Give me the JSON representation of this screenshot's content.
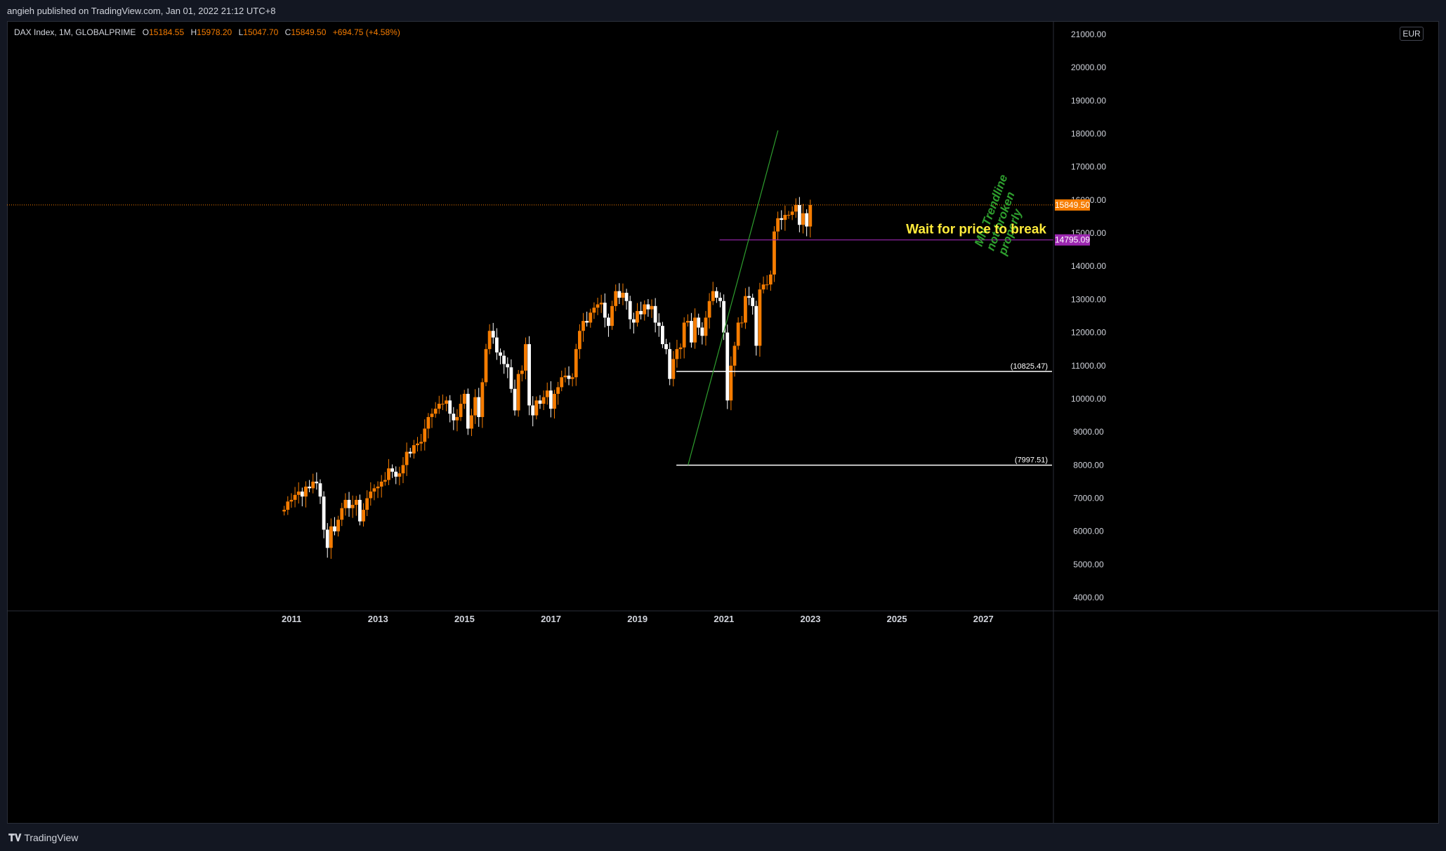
{
  "header": {
    "publish_line": "angieh published on TradingView.com, Jan 01, 2022 21:12 UTC+8"
  },
  "legend": {
    "symbol": "DAX Index, 1M, GLOBALPRIME",
    "o_label": "O",
    "o_value": "15184.55",
    "h_label": "H",
    "h_value": "15978.20",
    "l_label": "L",
    "l_value": "15047.70",
    "c_label": "C",
    "c_value": "15849.50",
    "change": "+694.75 (+4.58%)"
  },
  "currency": "EUR",
  "footer": {
    "brand": "TradingView"
  },
  "colors": {
    "up": "#f57c00",
    "down": "#ffffff",
    "trendline": "#2e9e2e",
    "support": "#9c27b0",
    "levels": "#ffffff",
    "annotation_yellow": "#ffeb3b",
    "price_tag": "#f57c00"
  },
  "chart_data": {
    "type": "candlestick",
    "title": "DAX Index, 1M, GLOBALPRIME",
    "ylim": [
      3600,
      21400
    ],
    "y_ticks": [
      4000,
      5000,
      6000,
      7000,
      8000,
      9000,
      10000,
      11000,
      12000,
      13000,
      14000,
      15000,
      16000,
      17000,
      18000,
      19000,
      20000,
      21000
    ],
    "x_ticks": [
      "2011",
      "2013",
      "2015",
      "2017",
      "2019",
      "2021",
      "2023",
      "2025",
      "2027"
    ],
    "x_tick_years": [
      2011,
      2013,
      2015,
      2017,
      2019,
      2021,
      2023,
      2025,
      2027
    ],
    "x_range_years": [
      2004.42,
      2028.62
    ],
    "grid": false,
    "last_price": 15849.5,
    "last_price_label": "15849.50",
    "support_level": 14795.09,
    "support_label": "14795.09",
    "support_start_year": 2020.9,
    "horizontal_levels": [
      {
        "value": 10825.47,
        "label": "(10825.47)",
        "start_year": 2019.9
      },
      {
        "value": 7997.51,
        "label": "(7997.51)",
        "start_year": 2019.9
      }
    ],
    "trendline": {
      "x1": 2020.17,
      "y1": 8000,
      "x2": 2022.25,
      "y2": 18100
    },
    "annotations": [
      {
        "text": "MN Trendline not broken properly",
        "lines": [
          "MN Trendline",
          "not broken",
          "properly"
        ],
        "color": "#2e9e2e"
      },
      {
        "text": "Wait for price to break",
        "color": "#ffeb3b"
      }
    ],
    "series": [
      {
        "start_year": 2010.83,
        "closes": [
          6650,
          6900,
          6950,
          7100,
          7200,
          7050,
          7350,
          7300,
          7500,
          7450,
          7050,
          6050,
          5500,
          6150,
          6000,
          6350,
          6700,
          6950,
          6700,
          6800,
          6950,
          6300,
          6650,
          7000,
          7200,
          7300,
          7350,
          7500,
          7550,
          7900,
          7800,
          7650,
          7750,
          8000,
          8400,
          8350,
          8600,
          8650,
          8700,
          9100,
          9450,
          9550,
          9700,
          9850,
          9850,
          9950,
          9550,
          9350,
          9450,
          9850,
          10150,
          9100,
          9500,
          10050,
          9450,
          10500,
          11500,
          12050,
          11850,
          11400,
          11300,
          11050,
          10950,
          10300,
          9650,
          10750,
          10850,
          11650,
          9800,
          9500,
          9950,
          9850,
          10050,
          10250,
          9700,
          10150,
          10350,
          10650,
          10700,
          10600,
          10650,
          11500,
          12050,
          12350,
          12300,
          12600,
          12750,
          12850,
          12900,
          12450,
          12200,
          12800,
          13250,
          13050,
          13200,
          12950,
          12400,
          12300,
          12650,
          12550,
          12850,
          12700,
          12800,
          12300,
          12200,
          11650,
          11500,
          10600,
          11200,
          11500,
          11550,
          12300,
          12350,
          11700,
          12450,
          12150,
          11900,
          12450,
          12950,
          13250,
          13050,
          12950,
          12000,
          9950,
          11000,
          11600,
          12300,
          12300,
          13100,
          13050,
          12800,
          11600,
          13300,
          13450,
          13450,
          13750,
          15050,
          15450,
          15400,
          15550,
          15550,
          15650,
          15850,
          15250,
          15600,
          15200,
          15850
        ]
      }
    ]
  }
}
